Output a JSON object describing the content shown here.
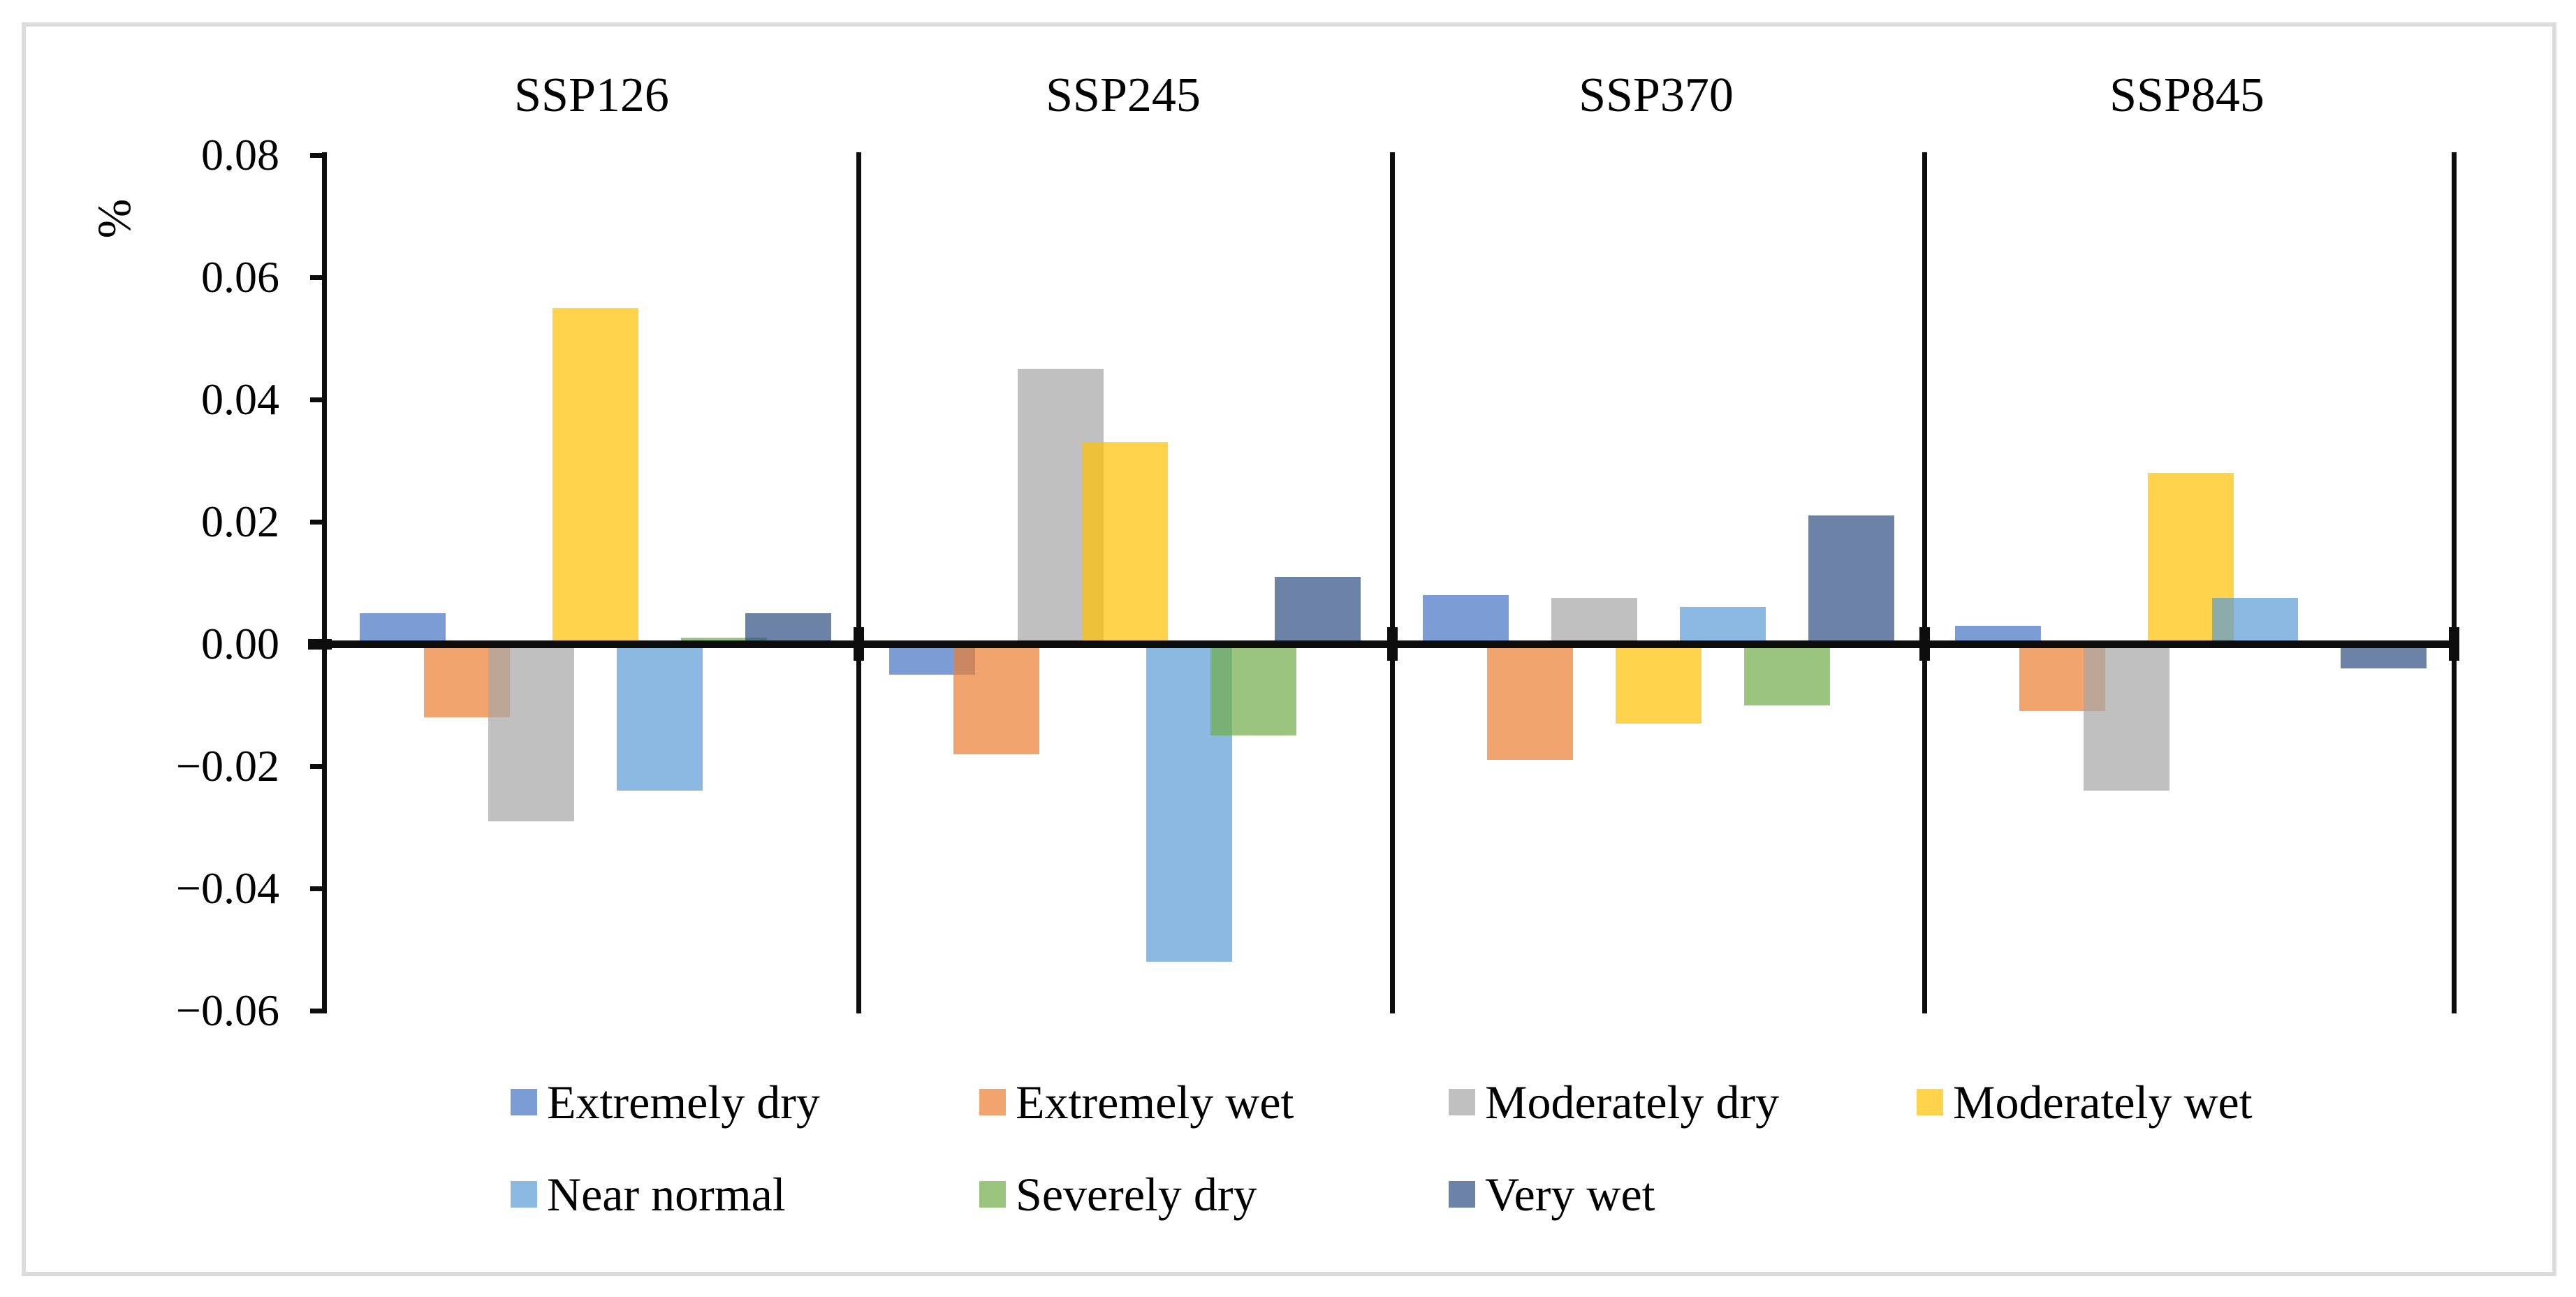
{
  "chart_data": {
    "type": "bar",
    "title": "",
    "ylabel": "%",
    "xlabel": "",
    "ylim": [
      -0.06,
      0.08
    ],
    "ytick_step": 0.02,
    "ytick_labels": [
      "0.08",
      "0.06",
      "0.04",
      "0.02",
      "0.00",
      "-0.02",
      "-0.04",
      "-0.06"
    ],
    "grid": false,
    "legend_position": "bottom",
    "panels": [
      "SSP126",
      "SSP245",
      "SSP370",
      "SSP845"
    ],
    "series": [
      {
        "name": "Extremely dry",
        "color": "#4472C4",
        "values": [
          0.005,
          -0.005,
          0.008,
          0.003
        ]
      },
      {
        "name": "Extremely wet",
        "color": "#ED7D31",
        "values": [
          -0.012,
          -0.018,
          -0.019,
          -0.011
        ]
      },
      {
        "name": "Moderately dry",
        "color": "#A5A5A5",
        "values": [
          -0.029,
          0.045,
          0.0075,
          -0.024
        ]
      },
      {
        "name": "Moderately wet",
        "color": "#FFC000",
        "values": [
          0.055,
          0.033,
          -0.013,
          0.028
        ]
      },
      {
        "name": "Near normal",
        "color": "#5B9BD5",
        "values": [
          -0.024,
          -0.052,
          0.006,
          0.0075
        ]
      },
      {
        "name": "Severely dry",
        "color": "#70AD47",
        "values": [
          0.001,
          -0.015,
          -0.01,
          0.0
        ]
      },
      {
        "name": "Very wet",
        "color": "#2E4D80",
        "values": [
          0.005,
          0.011,
          0.021,
          -0.004
        ]
      }
    ],
    "fill_opacity": 0.7,
    "axis_color": "#0d0d0d",
    "frame_color": "#dcdcdc"
  }
}
